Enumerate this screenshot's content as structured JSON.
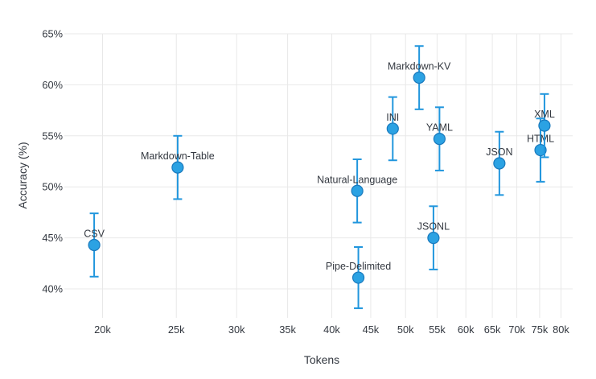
{
  "chart_data": {
    "type": "scatter",
    "title": "",
    "xlabel": "Tokens",
    "ylabel": "Accuracy (%)",
    "x_scale": "log",
    "grid": true,
    "legend": "none",
    "x_ticks": [
      {
        "label": "20k",
        "value": 20000
      },
      {
        "label": "25k",
        "value": 25000
      },
      {
        "label": "30k",
        "value": 30000
      },
      {
        "label": "35k",
        "value": 35000
      },
      {
        "label": "40k",
        "value": 40000
      },
      {
        "label": "45k",
        "value": 45000
      },
      {
        "label": "50k",
        "value": 50000
      },
      {
        "label": "55k",
        "value": 55000
      },
      {
        "label": "60k",
        "value": 60000
      },
      {
        "label": "65k",
        "value": 65000
      },
      {
        "label": "70k",
        "value": 70000
      },
      {
        "label": "75k",
        "value": 75000
      },
      {
        "label": "80k",
        "value": 80000
      }
    ],
    "y_ticks": [
      {
        "label": "40%",
        "value": 40
      },
      {
        "label": "45%",
        "value": 45
      },
      {
        "label": "50%",
        "value": 50
      },
      {
        "label": "55%",
        "value": 55
      },
      {
        "label": "60%",
        "value": 60
      },
      {
        "label": "65%",
        "value": 65
      }
    ],
    "x_range_tokens": [
      18100,
      83000
    ],
    "y_range_pct": [
      37.2,
      65
    ],
    "points": [
      {
        "label": "CSV",
        "tokens": 19500,
        "accuracy": 44.3,
        "ci_low": 41.2,
        "ci_high": 47.4
      },
      {
        "label": "Markdown-Table",
        "tokens": 25100,
        "accuracy": 51.9,
        "ci_low": 48.8,
        "ci_high": 55.0
      },
      {
        "label": "Natural-Language",
        "tokens": 43200,
        "accuracy": 49.6,
        "ci_low": 46.5,
        "ci_high": 52.7
      },
      {
        "label": "Pipe-Delimited",
        "tokens": 43350,
        "accuracy": 41.1,
        "ci_low": 38.1,
        "ci_high": 44.1
      },
      {
        "label": "INI",
        "tokens": 48100,
        "accuracy": 55.7,
        "ci_low": 52.6,
        "ci_high": 58.8
      },
      {
        "label": "Markdown-KV",
        "tokens": 52100,
        "accuracy": 60.7,
        "ci_low": 57.6,
        "ci_high": 63.8
      },
      {
        "label": "JSONL",
        "tokens": 54400,
        "accuracy": 45.0,
        "ci_low": 41.9,
        "ci_high": 48.1
      },
      {
        "label": "YAML",
        "tokens": 55400,
        "accuracy": 54.7,
        "ci_low": 51.6,
        "ci_high": 57.8
      },
      {
        "label": "JSON",
        "tokens": 66400,
        "accuracy": 52.3,
        "ci_low": 49.2,
        "ci_high": 55.4
      },
      {
        "label": "HTML",
        "tokens": 75200,
        "accuracy": 53.6,
        "ci_low": 50.5,
        "ci_high": 56.7
      },
      {
        "label": "XML",
        "tokens": 76100,
        "accuracy": 56.0,
        "ci_low": 52.9,
        "ci_high": 59.1
      }
    ],
    "colors": {
      "marker_fill": "#2ba2e3",
      "marker_stroke": "#1a79bc",
      "error_bar": "#2196dd",
      "grid": "#e8e8e8",
      "text": "#333840",
      "background": "#ffffff"
    }
  }
}
